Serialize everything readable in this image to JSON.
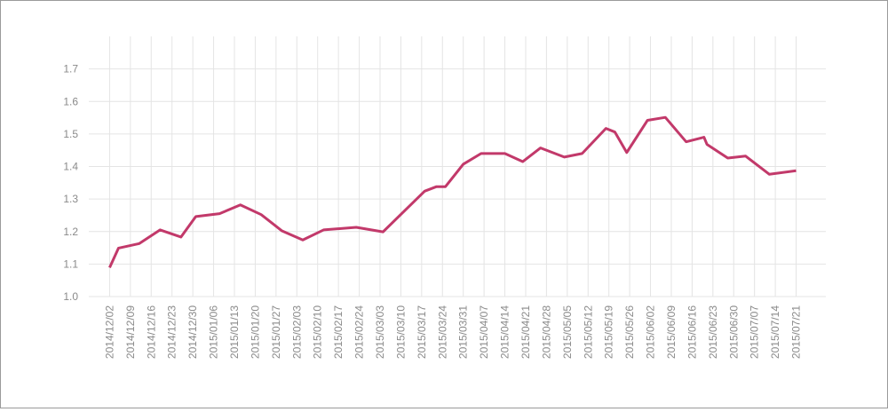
{
  "chart_data": {
    "type": "line",
    "x": [
      "2014/12/02",
      "2014/12/05",
      "2014/12/12",
      "2014/12/19",
      "2014/12/26",
      "2014/12/31",
      "2015/01/08",
      "2015/01/15",
      "2015/01/22",
      "2015/01/29",
      "2015/02/05",
      "2015/02/12",
      "2015/02/23",
      "2015/03/04",
      "2015/03/18",
      "2015/03/22",
      "2015/03/25",
      "2015/03/31",
      "2015/04/06",
      "2015/04/14",
      "2015/04/20",
      "2015/04/26",
      "2015/05/04",
      "2015/05/10",
      "2015/05/18",
      "2015/05/21",
      "2015/05/25",
      "2015/06/01",
      "2015/06/07",
      "2015/06/14",
      "2015/06/20",
      "2015/06/21",
      "2015/06/28",
      "2015/07/04",
      "2015/07/12",
      "2015/07/21"
    ],
    "series": [
      {
        "color": "#c2396a",
        "values": [
          1.089,
          1.149,
          1.163,
          1.205,
          1.183,
          1.246,
          1.255,
          1.282,
          1.252,
          1.202,
          1.174,
          1.205,
          1.213,
          1.199,
          1.324,
          1.338,
          1.338,
          1.407,
          1.44,
          1.44,
          1.415,
          1.457,
          1.429,
          1.44,
          1.517,
          1.506,
          1.443,
          1.542,
          1.551,
          1.476,
          1.49,
          1.468,
          1.426,
          1.432,
          1.376,
          1.387
        ]
      }
    ],
    "xlim": [
      "2014/11/25",
      "2015/07/31"
    ],
    "xticks": [
      "2014/12/02",
      "2014/12/09",
      "2014/12/16",
      "2014/12/23",
      "2014/12/30",
      "2015/01/06",
      "2015/01/13",
      "2015/01/20",
      "2015/01/27",
      "2015/02/03",
      "2015/02/10",
      "2015/02/17",
      "2015/02/24",
      "2015/03/03",
      "2015/03/10",
      "2015/03/17",
      "2015/03/24",
      "2015/03/31",
      "2015/04/07",
      "2015/04/14",
      "2015/04/21",
      "2015/04/28",
      "2015/05/05",
      "2015/05/12",
      "2015/05/19",
      "2015/05/26",
      "2015/06/02",
      "2015/06/09",
      "2015/06/16",
      "2015/06/23",
      "2015/06/30",
      "2015/07/07",
      "2015/07/14",
      "2015/07/21"
    ],
    "ylim": [
      1.0,
      1.8
    ],
    "yticks": [
      {
        "value": 1,
        "label": "1.0"
      },
      1.1,
      1.2,
      1.3,
      1.4,
      1.5,
      1.6,
      1.7
    ],
    "grid": true
  }
}
